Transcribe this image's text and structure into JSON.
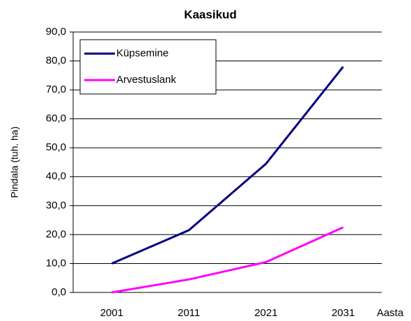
{
  "chart_data": {
    "type": "line",
    "title": "Kaasikud",
    "y_label": "Pindala (tuh. ha)",
    "x_label": "Aasta",
    "categories": [
      "2001",
      "2011",
      "2021",
      "2031"
    ],
    "series": [
      {
        "name": "Küpsemine",
        "color": "#000080",
        "values": [
          10,
          21.5,
          44.5,
          78
        ]
      },
      {
        "name": "Arvestuslank",
        "color": "#ff00ff",
        "values": [
          0,
          4.5,
          10.5,
          22.5
        ]
      }
    ],
    "ylim": [
      0,
      90
    ],
    "yticks": [
      {
        "value": 0,
        "label": "0,0"
      },
      {
        "value": 10,
        "label": "10,0"
      },
      {
        "value": 20,
        "label": "20,0"
      },
      {
        "value": 30,
        "label": "30,0"
      },
      {
        "value": 40,
        "label": "40,0"
      },
      {
        "value": 50,
        "label": "50,0"
      },
      {
        "value": 60,
        "label": "60,0"
      },
      {
        "value": 70,
        "label": "70,0"
      },
      {
        "value": 80,
        "label": "80,0"
      },
      {
        "value": 90,
        "label": "90,0"
      }
    ],
    "grid": true,
    "legend": "upper left"
  }
}
